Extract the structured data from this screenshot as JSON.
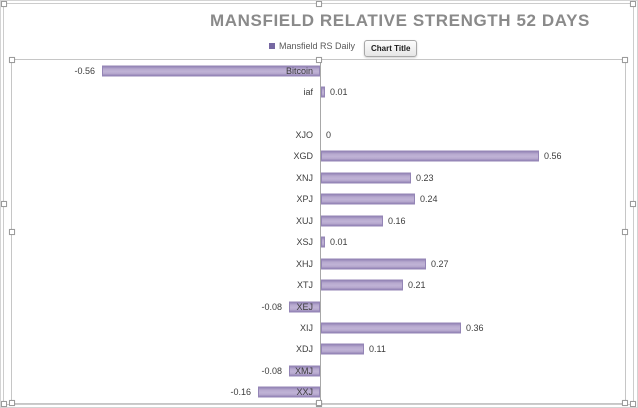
{
  "chart_data": {
    "type": "bar",
    "orientation": "horizontal",
    "title": "MANSFIELD RELATIVE STRENGTH 52 DAYS",
    "legend": {
      "position": "top-center",
      "entries": [
        "Mansfield RS Daily"
      ]
    },
    "categories": [
      "Bitcoin",
      "iaf",
      "",
      "XJO",
      "XGD",
      "XNJ",
      "XPJ",
      "XUJ",
      "XSJ",
      "XHJ",
      "XTJ",
      "XEJ",
      "XIJ",
      "XDJ",
      "XMJ",
      "XXJ"
    ],
    "values": [
      -0.56,
      0.01,
      null,
      0,
      0.56,
      0.23,
      0.24,
      0.16,
      0.01,
      0.27,
      0.21,
      -0.08,
      0.36,
      0.11,
      -0.08,
      -0.16
    ],
    "data_labels": [
      "-0.56",
      "0.01",
      "",
      "0",
      "0.56",
      "0.23",
      "0.24",
      "0.16",
      "0.01",
      "0.27",
      "0.21",
      "-0.08",
      "0.36",
      "0.11",
      "-0.08",
      "-0.16"
    ],
    "xlim": [
      -0.79,
      0.79
    ],
    "value_axis_visible": false,
    "grid": false,
    "colors": {
      "bar_fill": "#b7a9cf",
      "bar_edge": "#9485b6",
      "title": "#8a8a8a",
      "legend_marker": "#7668a2",
      "axis": "#a8a8a8"
    }
  },
  "ui": {
    "tooltip_label": "Chart Title"
  }
}
